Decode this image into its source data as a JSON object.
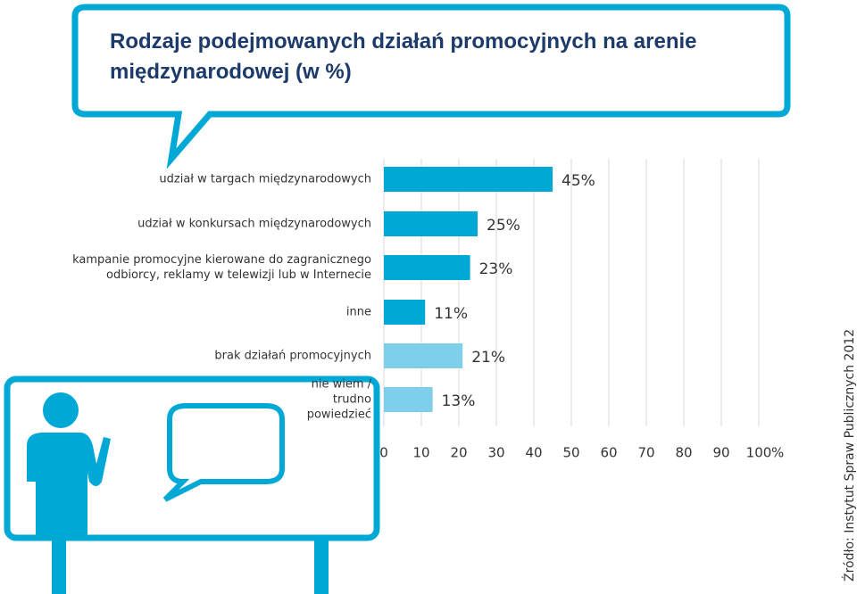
{
  "chart_data": {
    "type": "bar",
    "orientation": "horizontal",
    "title": "Rodzaje podejmowanych działań promocyjnych na arenie międzynarodowej (w %)",
    "categories": [
      "udział w targach międzynarodowych",
      "udział w konkursach międzynarodowych",
      "kampanie promocyjne kierowane do zagranicznego odbiorcy, reklamy w telewizji lub w Internecie",
      "inne",
      "brak działań promocyjnych",
      "nie wiem / trudno powiedzieć"
    ],
    "values": [
      45,
      25,
      23,
      11,
      21,
      13
    ],
    "value_labels": [
      "45%",
      "25%",
      "23%",
      "11%",
      "21%",
      "13%"
    ],
    "colors": [
      "#00a8d6",
      "#00a8d6",
      "#00a8d6",
      "#00a8d6",
      "#7fcfea",
      "#7fcfea"
    ],
    "xlim": [
      0,
      100
    ],
    "xticks": [
      0,
      10,
      20,
      30,
      40,
      50,
      60,
      70,
      80,
      90,
      100
    ],
    "x_unit": "%",
    "grid": true,
    "source": "Źródło: Instytut Spraw Publicznych 2012"
  }
}
